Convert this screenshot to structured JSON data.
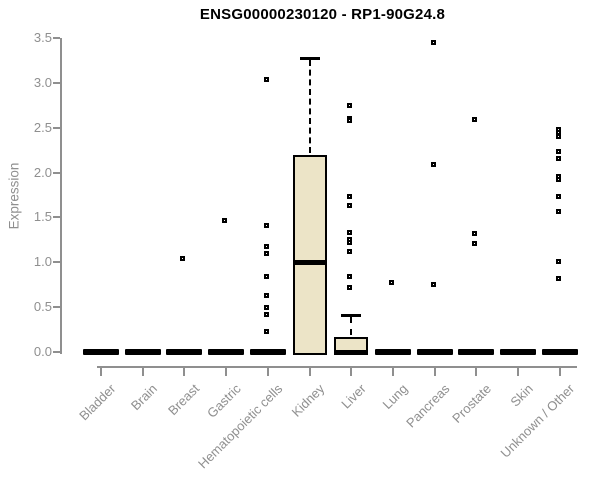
{
  "chart_data": {
    "type": "boxplot",
    "title": "ENSG00000230120 - RP1-90G24.8",
    "ylabel": "Expression",
    "xlabel": "",
    "ylim": [
      0,
      3.5
    ],
    "yticks": [
      0.0,
      0.5,
      1.0,
      1.5,
      2.0,
      2.5,
      3.0,
      3.5
    ],
    "grid": false,
    "legend": null,
    "categories": [
      "Bladder",
      "Brain",
      "Breast",
      "Gastric",
      "Hematopoietic cells",
      "Kidney",
      "Liver",
      "Lung",
      "Pancreas",
      "Prostate",
      "Skin",
      "Unknown / Other"
    ],
    "boxes": [
      {
        "category": "Bladder",
        "q1": 0,
        "median": 0,
        "q3": 0,
        "whisker_low": 0,
        "whisker_high": 0,
        "outliers": []
      },
      {
        "category": "Brain",
        "q1": 0,
        "median": 0,
        "q3": 0,
        "whisker_low": 0,
        "whisker_high": 0,
        "outliers": []
      },
      {
        "category": "Breast",
        "q1": 0,
        "median": 0,
        "q3": 0,
        "whisker_low": 0,
        "whisker_high": 0,
        "outliers": [
          1.04
        ]
      },
      {
        "category": "Gastric",
        "q1": 0,
        "median": 0,
        "q3": 0,
        "whisker_low": 0,
        "whisker_high": 0,
        "outliers": [
          1.46
        ]
      },
      {
        "category": "Hematopoietic cells",
        "q1": 0,
        "median": 0,
        "q3": 0,
        "whisker_low": 0,
        "whisker_high": 0,
        "outliers": [
          3.03,
          1.41,
          1.17,
          1.09,
          0.84,
          0.62,
          0.49,
          0.41,
          0.22
        ]
      },
      {
        "category": "Kidney",
        "q1": 0,
        "median": 1.0,
        "q3": 2.2,
        "whisker_low": 0,
        "whisker_high": 3.28,
        "outliers": []
      },
      {
        "category": "Liver",
        "q1": 0,
        "median": 0,
        "q3": 0.17,
        "whisker_low": 0,
        "whisker_high": 0.41,
        "outliers": [
          2.74,
          2.6,
          2.57,
          1.73,
          1.63,
          1.33,
          1.25,
          1.21,
          1.12,
          0.84,
          0.71
        ]
      },
      {
        "category": "Lung",
        "q1": 0,
        "median": 0,
        "q3": 0,
        "whisker_low": 0,
        "whisker_high": 0,
        "outliers": [
          0.77
        ]
      },
      {
        "category": "Pancreas",
        "q1": 0,
        "median": 0,
        "q3": 0,
        "whisker_low": 0,
        "whisker_high": 0,
        "outliers": [
          3.44,
          2.08,
          0.75
        ]
      },
      {
        "category": "Prostate",
        "q1": 0,
        "median": 0,
        "q3": 0,
        "whisker_low": 0,
        "whisker_high": 0,
        "outliers": [
          2.59,
          1.32,
          1.2
        ]
      },
      {
        "category": "Skin",
        "q1": 0,
        "median": 0,
        "q3": 0,
        "whisker_low": 0,
        "whisker_high": 0,
        "outliers": []
      },
      {
        "category": "Unknown / Other",
        "q1": 0,
        "median": 0,
        "q3": 0,
        "whisker_low": 0,
        "whisker_high": 0,
        "outliers": [
          2.48,
          2.44,
          2.4,
          2.23,
          2.15,
          1.95,
          1.92,
          1.73,
          1.56,
          1.0,
          0.81
        ]
      }
    ],
    "colors": {
      "box_fill": "#ece4c7",
      "box_border": "#000000",
      "median": "#000000",
      "outlier": "#000000",
      "axis": "#8f8f8f",
      "axis_text": "#8f8f8f",
      "title_text": "#000000"
    }
  }
}
